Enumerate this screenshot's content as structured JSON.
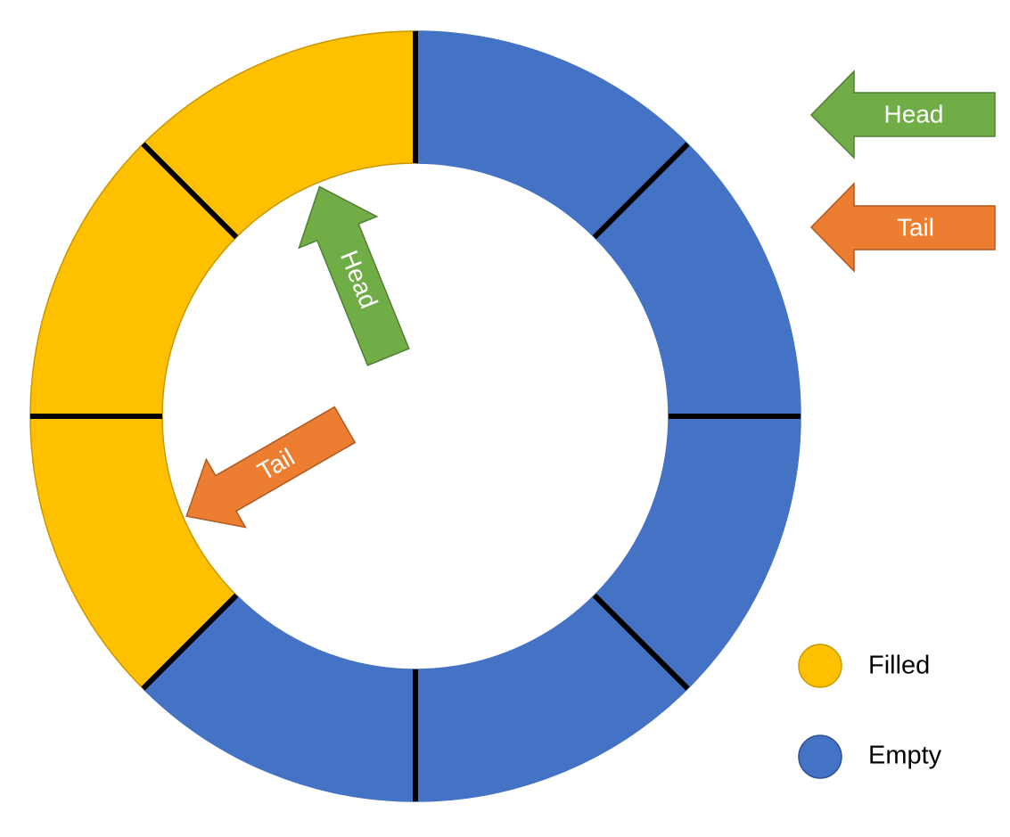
{
  "ring": {
    "segment_count": 8,
    "segments": [
      {
        "index": 0,
        "state": "empty"
      },
      {
        "index": 1,
        "state": "empty"
      },
      {
        "index": 2,
        "state": "empty"
      },
      {
        "index": 3,
        "state": "empty"
      },
      {
        "index": 4,
        "state": "empty"
      },
      {
        "index": 5,
        "state": "filled"
      },
      {
        "index": 6,
        "state": "filled"
      },
      {
        "index": 7,
        "state": "filled"
      }
    ]
  },
  "pointers": {
    "head": {
      "label": "Head",
      "points_to_boundary": 0,
      "color": "#70AD47"
    },
    "tail": {
      "label": "Tail",
      "points_to_segment": 5,
      "color": "#ED7D31"
    }
  },
  "key_arrows": [
    {
      "label": "Head",
      "color": "#70AD47"
    },
    {
      "label": "Tail",
      "color": "#ED7D31"
    }
  ],
  "legend": [
    {
      "label": "Filled",
      "color": "#FFC000",
      "stroke": "#C99700"
    },
    {
      "label": "Empty",
      "color": "#4472C4",
      "stroke": "#2F528F"
    }
  ],
  "colors": {
    "filled": "#FFC000",
    "empty": "#4472C4",
    "divider": "#000000"
  }
}
